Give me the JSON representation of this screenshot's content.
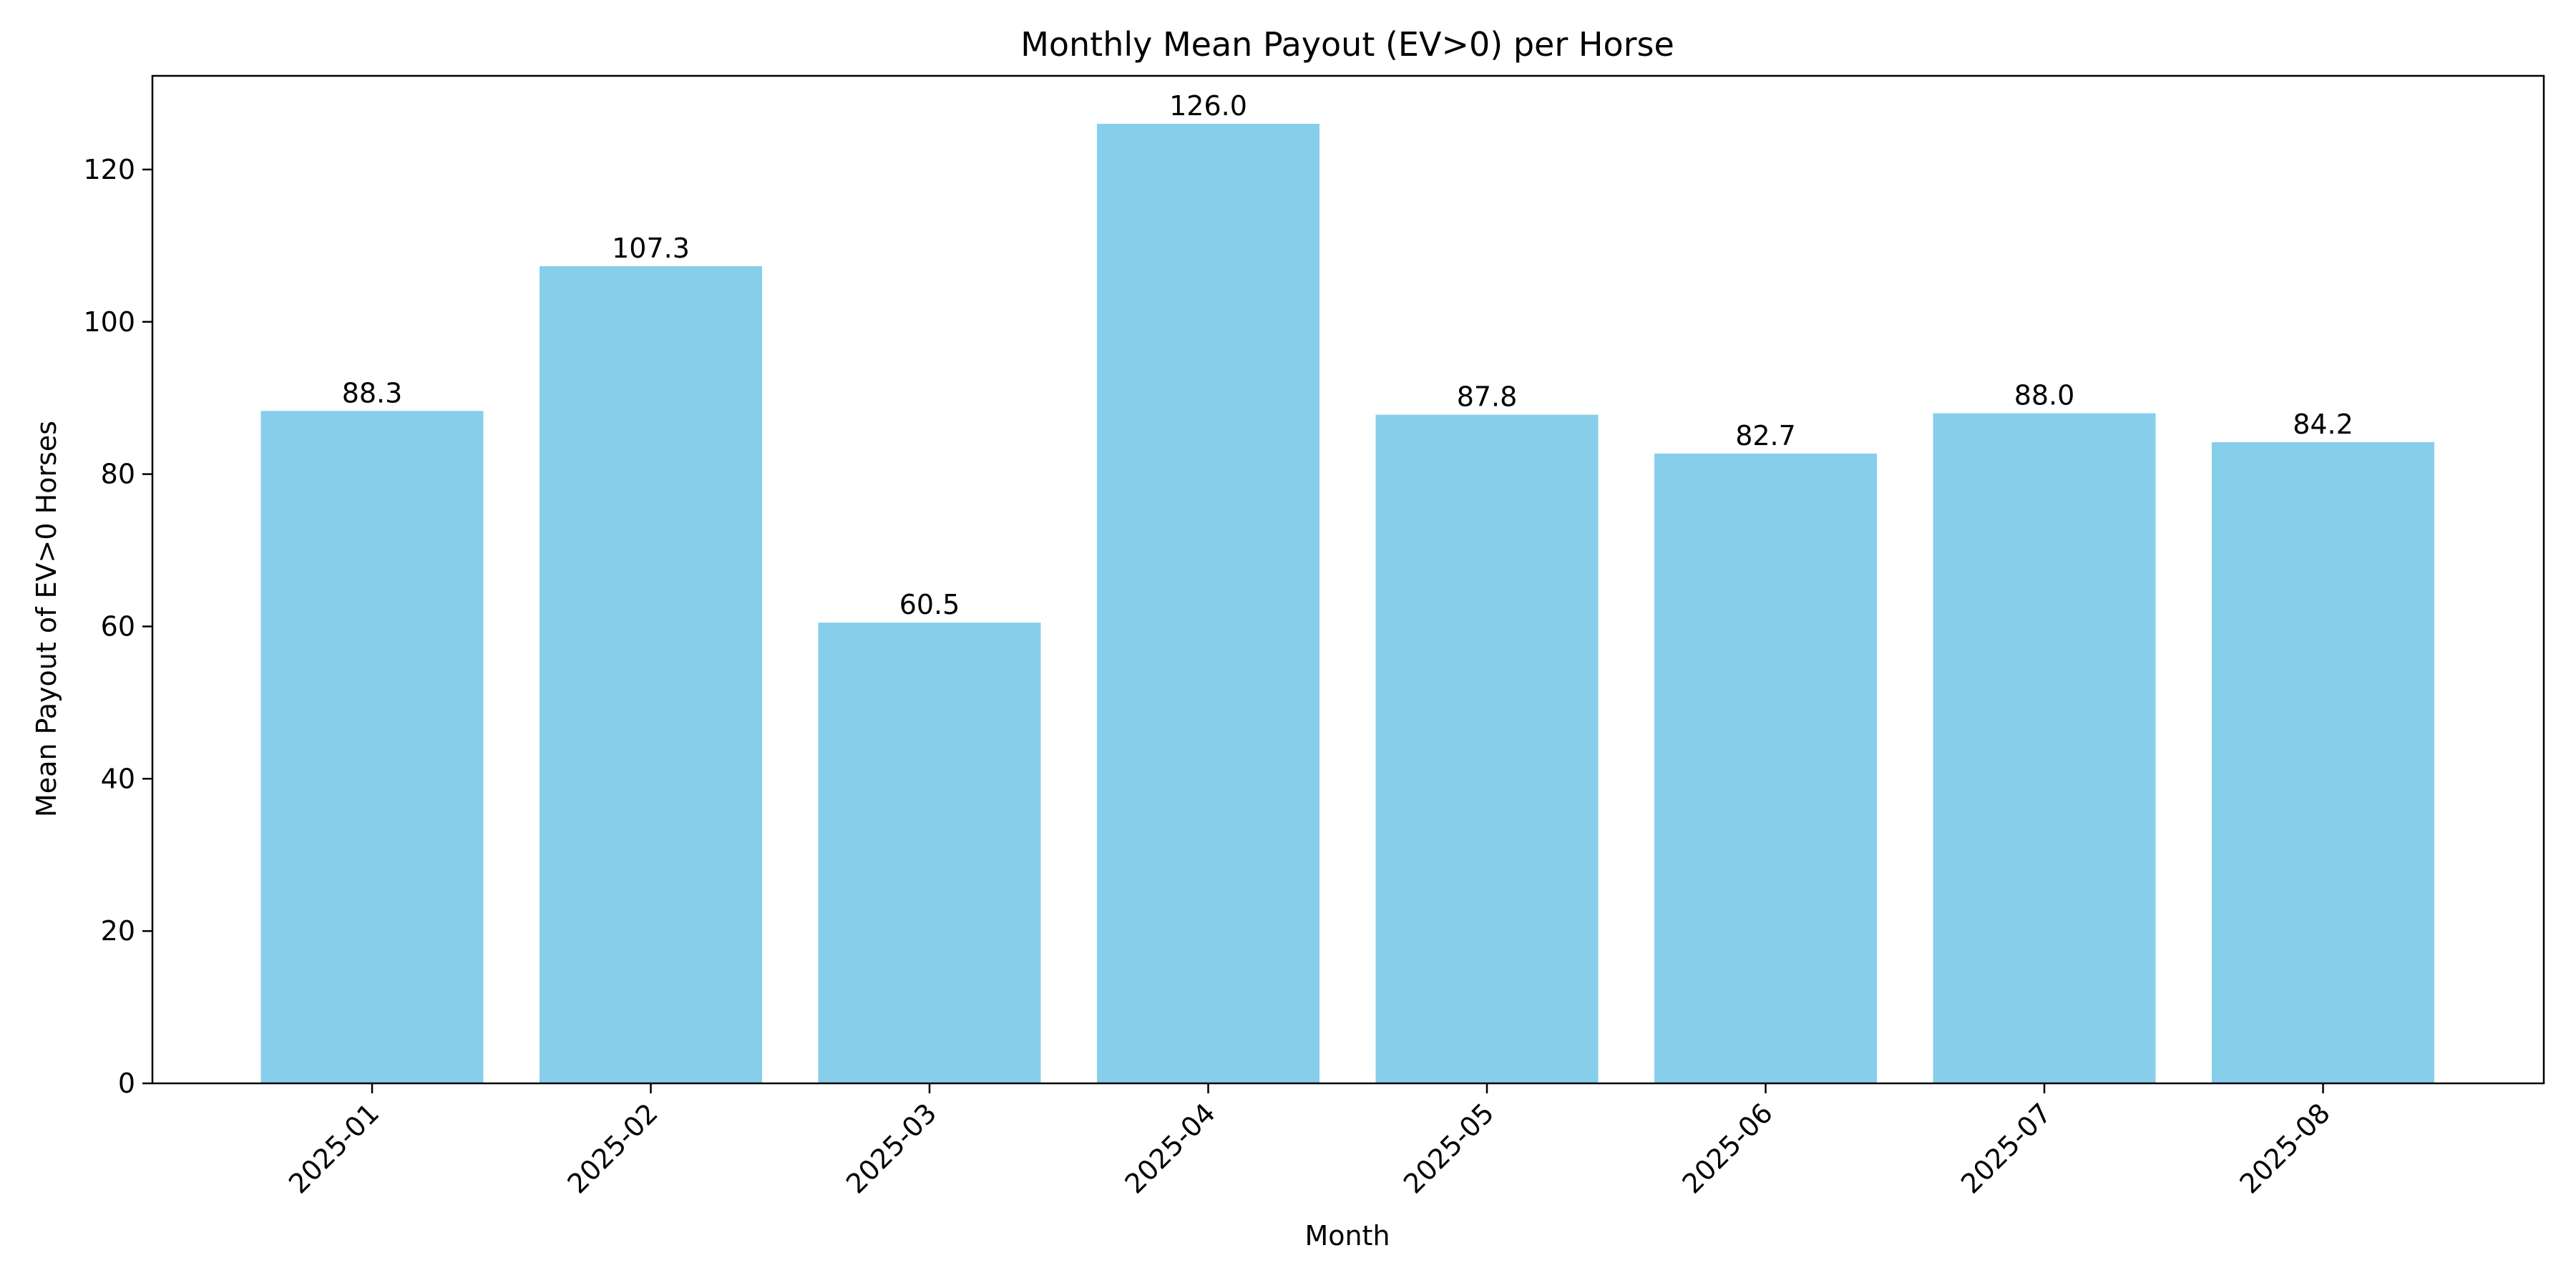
{
  "chart_data": {
    "type": "bar",
    "title": "Monthly Mean Payout (EV>0) per Horse",
    "xlabel": "Month",
    "ylabel": "Mean Payout of EV>0 Horses",
    "categories": [
      "2025-01",
      "2025-02",
      "2025-03",
      "2025-04",
      "2025-05",
      "2025-06",
      "2025-07",
      "2025-08"
    ],
    "values": [
      88.3,
      107.3,
      60.5,
      126.0,
      87.8,
      82.7,
      88.0,
      84.2
    ],
    "value_labels": [
      "88.3",
      "107.3",
      "60.5",
      "126.0",
      "87.8",
      "82.7",
      "88.0",
      "84.2"
    ],
    "ylim": [
      0,
      132.3
    ],
    "yticks": [
      0,
      20,
      40,
      60,
      80,
      100,
      120
    ],
    "xtick_rotation": 45,
    "grid": false,
    "legend": "none",
    "colors": {
      "bar": "#87CEEB",
      "axis": "#000000",
      "text": "#000000",
      "background": "#ffffff"
    }
  }
}
